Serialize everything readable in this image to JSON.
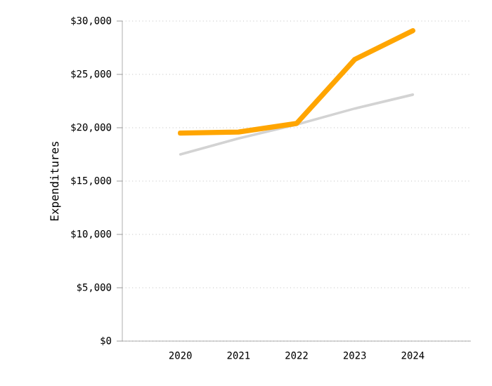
{
  "chart_data": {
    "type": "line",
    "ylabel": "Expenditures",
    "categories": [
      "2020",
      "2021",
      "2022",
      "2023",
      "2024"
    ],
    "series": [
      {
        "color": "#d3d3d3",
        "values": [
          17500,
          19000,
          20300,
          21800,
          23100
        ]
      },
      {
        "color": "#ffa500",
        "values": [
          19500,
          19600,
          20400,
          26400,
          29100
        ]
      }
    ],
    "ylim": [
      0,
      30000
    ],
    "yticks": [
      {
        "value": 0,
        "label": "$0"
      },
      {
        "value": 5000,
        "label": "$5,000"
      },
      {
        "value": 10000,
        "label": "$10,000"
      },
      {
        "value": 15000,
        "label": "$15,000"
      },
      {
        "value": 20000,
        "label": "$20,000"
      },
      {
        "value": 25000,
        "label": "$25,000"
      },
      {
        "value": 30000,
        "label": "$30,000"
      }
    ],
    "grid": "y",
    "marker": "none",
    "line_style": "solid"
  }
}
